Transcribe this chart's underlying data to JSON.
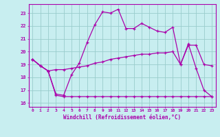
{
  "xlabel": "Windchill (Refroidissement éolien,°C)",
  "bg_color": "#c8eef0",
  "line_color": "#aa00aa",
  "grid_color": "#99cccc",
  "xlim": [
    -0.5,
    23.5
  ],
  "ylim": [
    15.7,
    23.7
  ],
  "yticks": [
    16,
    17,
    18,
    19,
    20,
    21,
    22,
    23
  ],
  "xticks": [
    0,
    1,
    2,
    3,
    4,
    5,
    6,
    7,
    8,
    9,
    10,
    11,
    12,
    13,
    14,
    15,
    16,
    17,
    18,
    19,
    20,
    21,
    22,
    23
  ],
  "series1_x": [
    0,
    1,
    2,
    3,
    4,
    5,
    6,
    7,
    8,
    9,
    10,
    11,
    12,
    13,
    14,
    15,
    16,
    17,
    18,
    19,
    20,
    21,
    22,
    23
  ],
  "series1_y": [
    19.4,
    18.9,
    18.5,
    16.7,
    16.6,
    18.2,
    19.1,
    20.7,
    22.1,
    23.1,
    23.0,
    23.3,
    21.8,
    21.8,
    22.2,
    21.9,
    21.6,
    21.5,
    21.9,
    19.0,
    20.6,
    18.7,
    17.0,
    16.5
  ],
  "series2_x": [
    0,
    1,
    2,
    3,
    4,
    5,
    6,
    7,
    8,
    9,
    10,
    11,
    12,
    13,
    14,
    15,
    16,
    17,
    18,
    19,
    20,
    21,
    22,
    23
  ],
  "series2_y": [
    19.4,
    18.9,
    18.5,
    18.6,
    18.6,
    18.7,
    18.8,
    18.9,
    19.1,
    19.2,
    19.4,
    19.5,
    19.6,
    19.7,
    19.8,
    19.8,
    19.9,
    19.9,
    20.0,
    19.0,
    20.5,
    20.5,
    19.0,
    18.9
  ],
  "series3_x": [
    0,
    1,
    2,
    3,
    4,
    5,
    6,
    7,
    8,
    9,
    10,
    11,
    12,
    13,
    14,
    15,
    16,
    17,
    18,
    19,
    20,
    21,
    22,
    23
  ],
  "series3_y": [
    19.4,
    18.9,
    18.5,
    16.6,
    16.5,
    16.5,
    16.5,
    16.5,
    16.5,
    16.5,
    16.5,
    16.5,
    16.5,
    16.5,
    16.5,
    16.5,
    16.5,
    16.5,
    16.5,
    16.5,
    16.5,
    16.5,
    16.5,
    16.5
  ]
}
